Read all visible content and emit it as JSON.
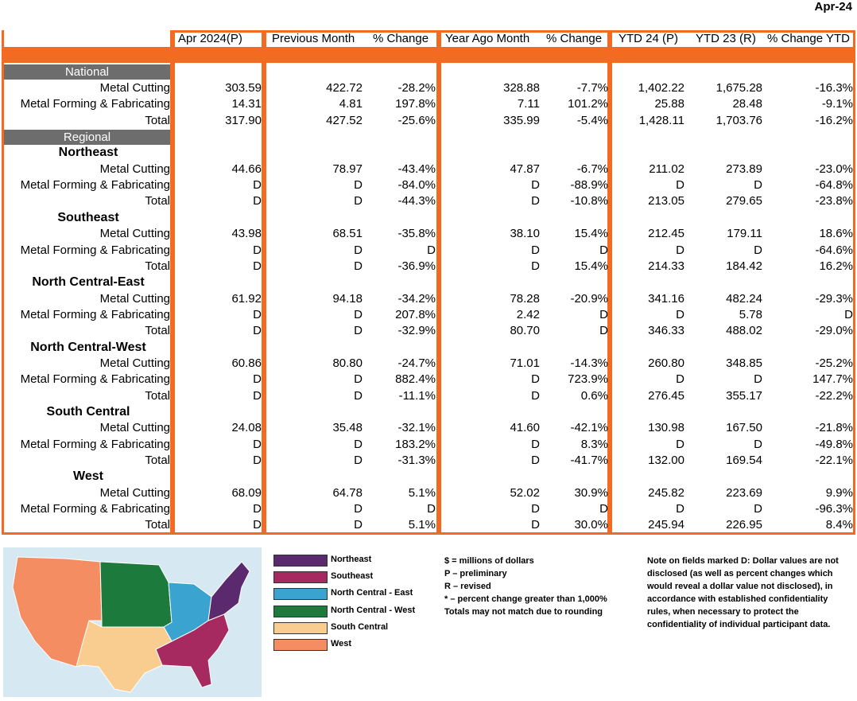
{
  "period": "Apr-24",
  "headers": {
    "c1": "Apr 2024(P)",
    "c2": "Previous Month",
    "c3": "% Change",
    "c4": "Year Ago Month",
    "c5": "% Change",
    "c6": "YTD 24 (P)",
    "c7": "YTD 23 (R)",
    "c8": "% Change YTD"
  },
  "sections": {
    "national": "National",
    "regional": "Regional"
  },
  "rows": [
    {
      "type": "data",
      "label": "Metal Cutting",
      "v": [
        "303.59",
        "422.72",
        "-28.2%",
        "328.88",
        "-7.7%",
        "1,402.22",
        "1,675.28",
        "-16.3%"
      ]
    },
    {
      "type": "data",
      "label": "Metal Forming & Fabricating",
      "v": [
        "14.31",
        "4.81",
        "197.8%",
        "7.11",
        "101.2%",
        "25.88",
        "28.48",
        "-9.1%"
      ]
    },
    {
      "type": "data",
      "label": "Total",
      "v": [
        "317.90",
        "427.52",
        "-25.6%",
        "335.99",
        "-5.4%",
        "1,428.11",
        "1,703.76",
        "-16.2%"
      ]
    },
    {
      "type": "section",
      "key": "regional"
    },
    {
      "type": "region",
      "label": "Northeast"
    },
    {
      "type": "data",
      "label": "Metal Cutting",
      "v": [
        "44.66",
        "78.97",
        "-43.4%",
        "47.87",
        "-6.7%",
        "211.02",
        "273.89",
        "-23.0%"
      ]
    },
    {
      "type": "data",
      "label": "Metal Forming & Fabricating",
      "v": [
        "D",
        "D",
        "-84.0%",
        "D",
        "-88.9%",
        "D",
        "D",
        "-64.8%"
      ]
    },
    {
      "type": "data",
      "label": "Total",
      "v": [
        "D",
        "D",
        "-44.3%",
        "D",
        "-10.8%",
        "213.05",
        "279.65",
        "-23.8%"
      ]
    },
    {
      "type": "region",
      "label": "Southeast"
    },
    {
      "type": "data",
      "label": "Metal Cutting",
      "v": [
        "43.98",
        "68.51",
        "-35.8%",
        "38.10",
        "15.4%",
        "212.45",
        "179.11",
        "18.6%"
      ]
    },
    {
      "type": "data",
      "label": "Metal Forming & Fabricating",
      "v": [
        "D",
        "D",
        "D",
        "D",
        "D",
        "D",
        "D",
        "-64.6%"
      ]
    },
    {
      "type": "data",
      "label": "Total",
      "v": [
        "D",
        "D",
        "-36.9%",
        "D",
        "15.4%",
        "214.33",
        "184.42",
        "16.2%"
      ]
    },
    {
      "type": "region",
      "label": "North Central-East"
    },
    {
      "type": "data",
      "label": "Metal Cutting",
      "v": [
        "61.92",
        "94.18",
        "-34.2%",
        "78.28",
        "-20.9%",
        "341.16",
        "482.24",
        "-29.3%"
      ]
    },
    {
      "type": "data",
      "label": "Metal Forming & Fabricating",
      "v": [
        "D",
        "D",
        "207.8%",
        "2.42",
        "D",
        "D",
        "5.78",
        "D"
      ]
    },
    {
      "type": "data",
      "label": "Total",
      "v": [
        "D",
        "D",
        "-32.9%",
        "80.70",
        "D",
        "346.33",
        "488.02",
        "-29.0%"
      ]
    },
    {
      "type": "region",
      "label": "North Central-West"
    },
    {
      "type": "data",
      "label": "Metal Cutting",
      "v": [
        "60.86",
        "80.80",
        "-24.7%",
        "71.01",
        "-14.3%",
        "260.80",
        "348.85",
        "-25.2%"
      ]
    },
    {
      "type": "data",
      "label": "Metal Forming & Fabricating",
      "v": [
        "D",
        "D",
        "882.4%",
        "D",
        "723.9%",
        "D",
        "D",
        "147.7%"
      ]
    },
    {
      "type": "data",
      "label": "Total",
      "v": [
        "D",
        "D",
        "-11.1%",
        "D",
        "0.6%",
        "276.45",
        "355.17",
        "-22.2%"
      ]
    },
    {
      "type": "region",
      "label": "South Central"
    },
    {
      "type": "data",
      "label": "Metal Cutting",
      "v": [
        "24.08",
        "35.48",
        "-32.1%",
        "41.60",
        "-42.1%",
        "130.98",
        "167.50",
        "-21.8%"
      ]
    },
    {
      "type": "data",
      "label": "Metal Forming & Fabricating",
      "v": [
        "D",
        "D",
        "183.2%",
        "D",
        "8.3%",
        "D",
        "D",
        "-49.8%"
      ]
    },
    {
      "type": "data",
      "label": "Total",
      "v": [
        "D",
        "D",
        "-31.3%",
        "D",
        "-41.7%",
        "132.00",
        "169.54",
        "-22.1%"
      ]
    },
    {
      "type": "region",
      "label": "West"
    },
    {
      "type": "data",
      "label": "Metal Cutting",
      "v": [
        "68.09",
        "64.78",
        "5.1%",
        "52.02",
        "30.9%",
        "245.82",
        "223.69",
        "9.9%"
      ]
    },
    {
      "type": "data",
      "label": "Metal Forming & Fabricating",
      "v": [
        "D",
        "D",
        "D",
        "D",
        "D",
        "D",
        "D",
        "-96.3%"
      ]
    },
    {
      "type": "data",
      "label": "Total",
      "v": [
        "D",
        "D",
        "5.1%",
        "D",
        "30.0%",
        "245.94",
        "226.95",
        "8.4%"
      ]
    }
  ],
  "legend": [
    {
      "label": "Northeast",
      "color": "#5b2a6e"
    },
    {
      "label": "Southeast",
      "color": "#a6295f"
    },
    {
      "label": "North Central - East",
      "color": "#3ba3cf"
    },
    {
      "label": "North Central - West",
      "color": "#1c7a3c"
    },
    {
      "label": "South Central",
      "color": "#f9cd8f"
    },
    {
      "label": "West",
      "color": "#f58d63"
    }
  ],
  "notes": {
    "n1": "$ = millions of dollars",
    "n2": "P – preliminary",
    "n3": "R – revised",
    "n4": "* – percent change greater than 1,000%",
    "n5": "Totals may not match due to rounding"
  },
  "disclosure": {
    "l1": "Note on fields marked D: Dollar values are not",
    "l2": "disclosed (as well as percent changes which",
    "l3": "would reveal a dollar value not disclosed), in",
    "l4": "accordance with established confidentiality",
    "l5": "rules, when necessary to protect the",
    "l6": "confidentiality of individual participant data."
  },
  "colors": {
    "accent": "#f26b21",
    "section_bg": "#6d6d6d",
    "map_bg": "#d6e9f2"
  }
}
